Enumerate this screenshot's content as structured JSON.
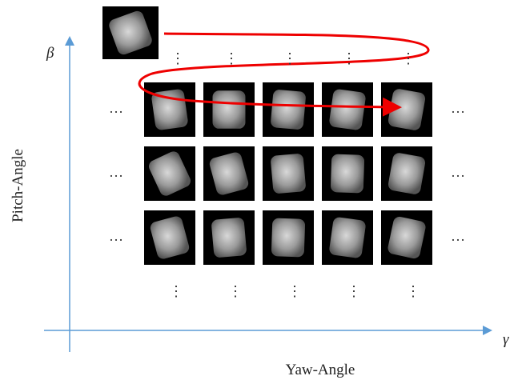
{
  "axes": {
    "y_symbol": "β",
    "x_symbol": "γ",
    "y_label": "Pitch-Angle",
    "x_label": "Yaw-Angle"
  },
  "ellipsis": {
    "horizontal": "…",
    "vertical": "⋮"
  }
}
